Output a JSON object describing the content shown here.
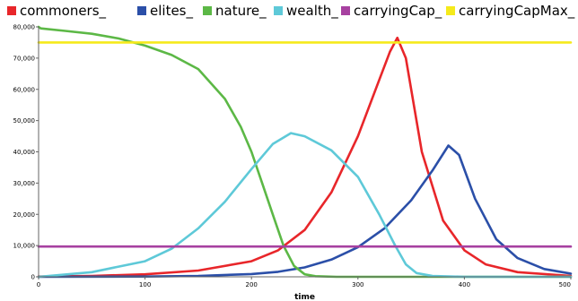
{
  "chart_data": {
    "type": "line",
    "title": "",
    "xlabel": "time",
    "ylabel": "",
    "xlim": [
      0,
      500
    ],
    "ylim": [
      0,
      80000
    ],
    "xticks": [
      0,
      100,
      200,
      300,
      400,
      500
    ],
    "xtick_labels": [
      "0",
      "100",
      "200",
      "300",
      "400",
      "500"
    ],
    "yticks": [
      0,
      10000,
      20000,
      30000,
      40000,
      50000,
      60000,
      70000,
      80000
    ],
    "ytick_labels": [
      "0",
      "10,000",
      "20,000",
      "30,000",
      "40,000",
      "50,000",
      "60,000",
      "70,000",
      "80,000"
    ],
    "grid": false,
    "legend_position": "top",
    "series": [
      {
        "name": "commoners_",
        "color": "#e8262a",
        "x": [
          0,
          50,
          100,
          150,
          200,
          225,
          250,
          275,
          300,
          320,
          330,
          337,
          345,
          360,
          380,
          400,
          420,
          450,
          500
        ],
        "y": [
          100,
          300,
          800,
          2000,
          5000,
          8500,
          15000,
          27000,
          45000,
          63000,
          72000,
          76500,
          70000,
          40000,
          18000,
          8500,
          4000,
          1500,
          300
        ]
      },
      {
        "name": "elites_",
        "color": "#2b4fa8",
        "x": [
          0,
          100,
          150,
          200,
          225,
          250,
          275,
          300,
          325,
          350,
          370,
          385,
          395,
          410,
          430,
          450,
          475,
          500
        ],
        "y": [
          0,
          100,
          300,
          900,
          1600,
          3000,
          5500,
          9500,
          15500,
          24500,
          34000,
          42000,
          39000,
          25000,
          12000,
          6000,
          2500,
          1000
        ]
      },
      {
        "name": "nature_",
        "color": "#5cb846",
        "x": [
          0,
          2,
          25,
          50,
          75,
          100,
          125,
          150,
          175,
          190,
          200,
          210,
          220,
          230,
          240,
          250,
          260,
          280,
          300,
          500
        ],
        "y": [
          80000,
          79500,
          78700,
          77800,
          76300,
          74000,
          71000,
          66500,
          57000,
          48000,
          40000,
          30000,
          20000,
          10000,
          3500,
          800,
          200,
          0,
          0,
          0
        ]
      },
      {
        "name": "wealth_",
        "color": "#5ec9d8",
        "x": [
          0,
          50,
          100,
          125,
          150,
          175,
          200,
          220,
          237,
          250,
          275,
          300,
          320,
          335,
          345,
          355,
          370,
          400,
          500
        ],
        "y": [
          0,
          1500,
          5000,
          9000,
          15500,
          24000,
          34500,
          42500,
          46000,
          45000,
          40500,
          32000,
          20000,
          10000,
          4000,
          1200,
          300,
          0,
          0
        ]
      },
      {
        "name": "carryingCap_",
        "color": "#a741a0",
        "x": [
          0,
          500
        ],
        "y": [
          9700,
          9700
        ]
      },
      {
        "name": "carryingCapMax_",
        "color": "#f5ea1b",
        "x": [
          0,
          500
        ],
        "y": [
          75000,
          75000
        ]
      }
    ]
  }
}
